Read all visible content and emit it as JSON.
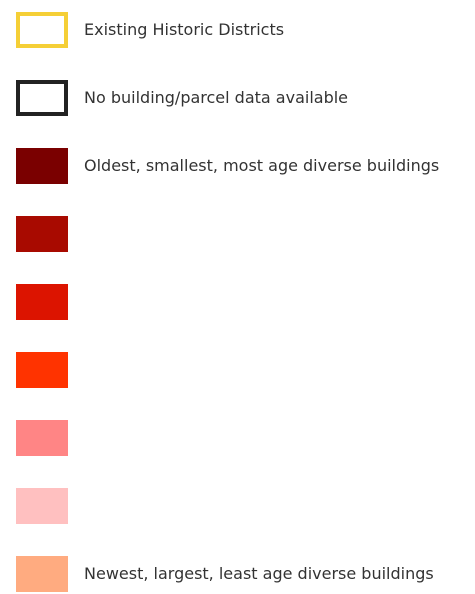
{
  "legend": {
    "items": [
      {
        "style": "outline",
        "color": "#f5cf36",
        "label": "Existing Historic Districts"
      },
      {
        "style": "outline",
        "color": "#222222",
        "label": "No building/parcel data available"
      },
      {
        "style": "fill",
        "color": "#7a0000",
        "label": "Oldest, smallest, most age diverse buildings"
      },
      {
        "style": "fill",
        "color": "#a80a00"
      },
      {
        "style": "fill",
        "color": "#dc1400"
      },
      {
        "style": "fill",
        "color": "#ff3300"
      },
      {
        "style": "fill",
        "color": "#ff8585"
      },
      {
        "style": "fill",
        "color": "#ffc0c0"
      },
      {
        "style": "fill",
        "color": "#ffab80",
        "label": "Newest, largest, least age diverse buildings"
      }
    ]
  }
}
